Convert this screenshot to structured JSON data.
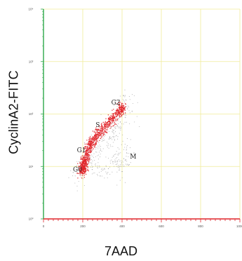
{
  "chart_data": {
    "type": "scatter",
    "title": "",
    "xlabel": "7AAD",
    "ylabel": "CyclinA2-FITC",
    "x_ticks": [
      "0",
      "200",
      "400",
      "600",
      "800",
      "1000"
    ],
    "y_ticks": [
      "10⁰",
      "10¹",
      "10²",
      "10³",
      "10⁴"
    ],
    "xlim": [
      0,
      1000
    ],
    "ylim_log10": [
      0,
      4
    ],
    "y_scale": "log",
    "grid": true,
    "annotations": [
      {
        "text": "G0",
        "x": 150,
        "y_log": 0.9
      },
      {
        "text": "G1",
        "x": 170,
        "y_log": 1.27
      },
      {
        "text": "S",
        "x": 265,
        "y_log": 1.75
      },
      {
        "text": "G2",
        "x": 345,
        "y_log": 2.18
      },
      {
        "text": "M",
        "x": 440,
        "y_log": 1.15
      }
    ],
    "series": [
      {
        "color": "#e0262b",
        "points": [
          [
            195,
            0.92
          ],
          [
            200,
            1.0
          ],
          [
            205,
            1.08
          ],
          [
            210,
            0.95
          ],
          [
            215,
            1.12
          ],
          [
            220,
            1.25
          ],
          [
            230,
            1.35
          ],
          [
            240,
            1.42
          ],
          [
            250,
            1.48
          ],
          [
            265,
            1.55
          ],
          [
            280,
            1.62
          ],
          [
            300,
            1.7
          ],
          [
            320,
            1.78
          ],
          [
            340,
            1.86
          ],
          [
            360,
            1.94
          ],
          [
            380,
            2.02
          ],
          [
            395,
            2.08
          ],
          [
            400,
            2.12
          ]
        ]
      },
      {
        "color": "#9a9a9a",
        "points": [
          [
            180,
            0.85
          ],
          [
            230,
            1.1
          ],
          [
            260,
            1.3
          ],
          [
            300,
            1.45
          ],
          [
            330,
            1.55
          ],
          [
            360,
            1.7
          ],
          [
            380,
            1.85
          ],
          [
            420,
            2.0
          ],
          [
            410,
            2.25
          ],
          [
            390,
            1.15
          ],
          [
            400,
            1.05
          ],
          [
            420,
            1.25
          ],
          [
            360,
            1.0
          ],
          [
            300,
            0.95
          ],
          [
            250,
            1.05
          ]
        ]
      }
    ]
  }
}
